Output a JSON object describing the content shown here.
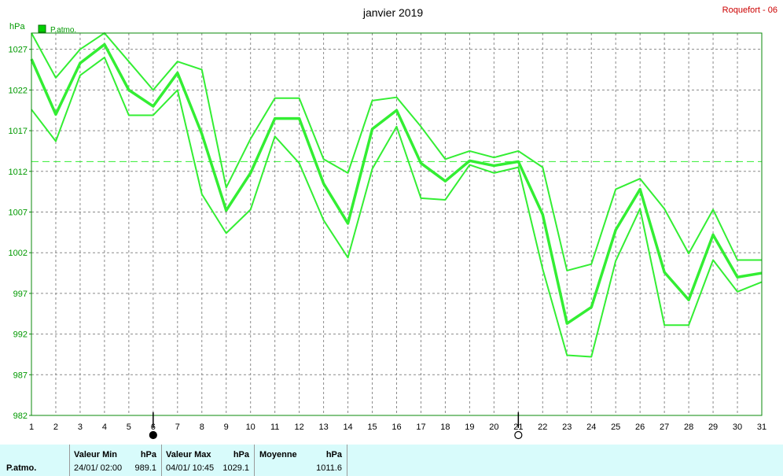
{
  "header": {
    "title": "janvier 2019",
    "station": "Roquefort - 06",
    "unit": "hPa"
  },
  "legend": {
    "label": "P.atmo.",
    "color": "#00d000"
  },
  "colors": {
    "line": "#33ee33",
    "border": "#0a8a0a",
    "footer_bg": "#d8fbfb"
  },
  "chart_data": {
    "type": "line",
    "title": "janvier 2019",
    "ylabel": "hPa",
    "x": [
      1,
      2,
      3,
      4,
      5,
      6,
      7,
      8,
      9,
      10,
      11,
      12,
      13,
      14,
      15,
      16,
      17,
      18,
      19,
      20,
      21,
      22,
      23,
      24,
      25,
      26,
      27,
      28,
      29,
      30,
      31
    ],
    "xlim": [
      1,
      31
    ],
    "ylim": [
      982,
      1029
    ],
    "yticks": [
      982,
      987,
      992,
      997,
      1002,
      1007,
      1012,
      1017,
      1022,
      1027
    ],
    "grid": true,
    "legend_position": "top-left",
    "series": [
      {
        "name": "P.atmo.",
        "role": "max",
        "values": [
          1029.0,
          1023.5,
          1027.0,
          1029.0,
          1025.5,
          1022.0,
          1025.5,
          1024.5,
          1010.0,
          1016.0,
          1021.0,
          1021.0,
          1013.5,
          1011.8,
          1020.7,
          1021.1,
          1017.5,
          1013.5,
          1014.5,
          1013.7,
          1014.5,
          1012.5,
          999.8,
          1000.6,
          1009.8,
          1011.1,
          1007.4,
          1001.9,
          1007.3,
          1001.1,
          1001.1
        ]
      },
      {
        "name": "P.atmo.",
        "role": "mean",
        "values": [
          1025.8,
          1019.0,
          1025.3,
          1027.6,
          1022.0,
          1020.0,
          1024.1,
          1016.6,
          1007.2,
          1011.8,
          1018.5,
          1018.5,
          1010.5,
          1005.6,
          1017.2,
          1019.5,
          1013.0,
          1010.8,
          1013.3,
          1012.7,
          1013.2,
          1006.7,
          993.3,
          995.3,
          1004.8,
          1009.8,
          999.6,
          996.2,
          1004.2,
          999.0,
          999.5
        ]
      },
      {
        "name": "P.atmo.",
        "role": "min",
        "values": [
          1019.6,
          1015.7,
          1023.8,
          1026.0,
          1018.9,
          1018.9,
          1022.0,
          1009.2,
          1004.4,
          1007.3,
          1016.3,
          1013.0,
          1006.0,
          1001.4,
          1012.3,
          1017.5,
          1008.7,
          1008.5,
          1012.8,
          1011.8,
          1012.5,
          1000.0,
          989.4,
          989.2,
          1001.0,
          1007.4,
          993.1,
          993.1,
          1001.1,
          997.2,
          998.4
        ]
      }
    ],
    "average_line": 1013.2,
    "markers": [
      {
        "day": 6,
        "symbol": "filled-circle"
      },
      {
        "day": 21,
        "symbol": "open-circle"
      }
    ]
  },
  "footer": {
    "row_label": "P.atmo.",
    "min_label": "Valeur Min",
    "min_unit": "hPa",
    "min_datetime": "24/01/  02:00",
    "min_value": "989.1",
    "max_label": "Valeur Max",
    "max_unit": "hPa",
    "max_datetime": "04/01/  10:45",
    "max_value": "1029.1",
    "mean_label": "Moyenne",
    "mean_unit": "hPa",
    "mean_value": "1011.6"
  }
}
